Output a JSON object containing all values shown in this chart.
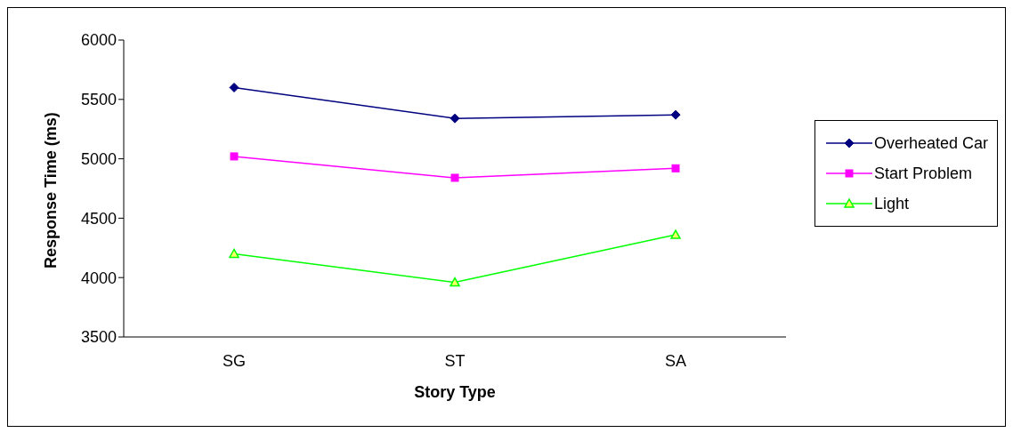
{
  "chart_data": {
    "type": "line",
    "xlabel": "Story Type",
    "ylabel": "Response Time (ms)",
    "categories": [
      "SG",
      "ST",
      "SA"
    ],
    "series": [
      {
        "name": "Overheated Car",
        "color": "#000080",
        "marker": "diamond",
        "values": [
          5600,
          5340,
          5370
        ]
      },
      {
        "name": "Start Problem",
        "color": "#ff00ff",
        "marker": "square",
        "values": [
          5020,
          4840,
          4920
        ]
      },
      {
        "name": "Light",
        "color": "#00ff00",
        "marker": "triangle",
        "values": [
          4200,
          3960,
          4360
        ]
      }
    ],
    "ylim": [
      3500,
      6000
    ],
    "yticks": [
      3500,
      4000,
      4500,
      5000,
      5500,
      6000
    ],
    "grid": false,
    "legend": "right",
    "line_style": "solid"
  }
}
